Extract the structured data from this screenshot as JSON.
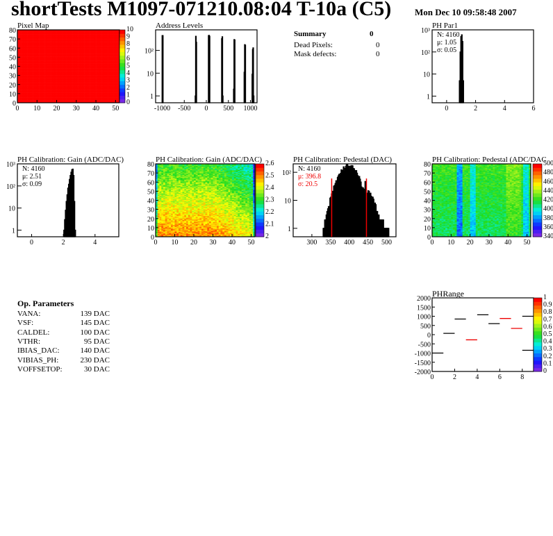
{
  "header": {
    "title": "shortTests M1097-071210.08:04 T-10a (C5)",
    "date": "Mon Dec 10 09:58:48 2007"
  },
  "summary": {
    "title": "Summary",
    "value": "0",
    "rows": [
      {
        "label": "Dead Pixels:",
        "value": "0"
      },
      {
        "label": "Mask defects:",
        "value": "0"
      }
    ]
  },
  "op_params": {
    "title": "Op. Parameters",
    "rows": [
      {
        "label": "VANA:",
        "value": "139 DAC"
      },
      {
        "label": "VSF:",
        "value": "145 DAC"
      },
      {
        "label": "CALDEL:",
        "value": "100 DAC"
      },
      {
        "label": "VTHR:",
        "value": "95 DAC"
      },
      {
        "label": "IBIAS_DAC:",
        "value": "140 DAC"
      },
      {
        "label": "VIBIAS_PH:",
        "value": "230 DAC"
      },
      {
        "label": "VOFFSETOP:",
        "value": "30 DAC"
      }
    ]
  },
  "chart_data": [
    {
      "id": "pixelmap",
      "type": "heatmap",
      "title": "Pixel Map",
      "xlim": [
        0,
        52
      ],
      "ylim": [
        0,
        80
      ],
      "zlim": [
        0,
        10
      ],
      "value_all": 10,
      "xticks": [
        0,
        10,
        20,
        30,
        40,
        50
      ],
      "yticks": [
        0,
        10,
        20,
        30,
        40,
        50,
        60,
        70,
        80
      ],
      "zticks": [
        0,
        1,
        2,
        3,
        4,
        5,
        6,
        7,
        8,
        9,
        10
      ]
    },
    {
      "id": "addr",
      "type": "bar",
      "title": "Address Levels",
      "xlim": [
        -1150,
        1150
      ],
      "ylim": [
        0.5,
        800
      ],
      "log_y": true,
      "xticks": [
        -1000,
        -500,
        0,
        500,
        1000
      ],
      "x": [
        -1000,
        -990,
        -250,
        -240,
        -230,
        50,
        60,
        70,
        350,
        360,
        370,
        380,
        620,
        630,
        640,
        650,
        860,
        870,
        880,
        1040,
        1050,
        1060,
        1070
      ],
      "values": [
        450,
        450,
        1,
        420,
        230,
        450,
        460,
        420,
        330,
        400,
        1,
        0,
        2,
        300,
        290,
        0,
        11,
        180,
        170,
        9,
        110,
        130,
        1
      ]
    },
    {
      "id": "phpar1",
      "type": "bar",
      "title": "PH Par1",
      "xlim": [
        -1,
        6
      ],
      "ylim": [
        0.5,
        1000
      ],
      "log_y": true,
      "xticks": [
        0,
        2,
        4,
        6
      ],
      "x": [
        0.9,
        0.95,
        1.0,
        1.05,
        1.1,
        1.15
      ],
      "values": [
        5,
        100,
        500,
        600,
        300,
        5
      ],
      "stats": {
        "n": "N: 4160",
        "mean": "μ: 1.05",
        "sigma": "σ: 0.05"
      }
    },
    {
      "id": "gainhist",
      "type": "bar",
      "title": "PH Calibration: Gain (ADC/DAC)",
      "xlim": [
        -0.9,
        5.5
      ],
      "ylim": [
        0.5,
        1000
      ],
      "log_y": true,
      "xticks": [
        0,
        2,
        4
      ],
      "x": [
        2.05,
        2.1,
        2.15,
        2.2,
        2.25,
        2.3,
        2.35,
        2.4,
        2.45,
        2.5,
        2.55,
        2.6,
        2.65,
        2.7,
        2.75
      ],
      "values": [
        1,
        3,
        8,
        20,
        40,
        80,
        120,
        200,
        300,
        420,
        550,
        580,
        300,
        20,
        1
      ],
      "stats": {
        "n": "N: 4160",
        "mean": "μ: 2.51",
        "sigma": "σ: 0.09"
      }
    },
    {
      "id": "gainmap",
      "type": "heatmap",
      "title": "PH Calibration: Gain (ADC/DAC)",
      "xlim": [
        0,
        52
      ],
      "ylim": [
        0,
        80
      ],
      "zlim": [
        1.95,
        2.7
      ],
      "xticks": [
        0,
        10,
        20,
        30,
        40,
        50
      ],
      "yticks": [
        0,
        10,
        20,
        30,
        40,
        50,
        60,
        70,
        80
      ],
      "zticks": [
        "2",
        "2.1",
        "2.2",
        "2.3",
        "2.4",
        "2.5",
        "2.6"
      ]
    },
    {
      "id": "pedhist",
      "type": "bar",
      "title": "PH Calibration: Pedestal (DAC)",
      "xlim": [
        250,
        525
      ],
      "ylim": [
        0.5,
        200
      ],
      "log_y": true,
      "xticks": [
        300,
        350,
        400,
        450,
        500
      ],
      "gauss": {
        "mean": 396.8,
        "sigma": 20.5,
        "n": 4160
      },
      "fit_range": [
        353,
        446
      ],
      "stats": {
        "n": "N: 4160",
        "mean": "μ: 396.8",
        "sigma": "σ: 20.5"
      }
    },
    {
      "id": "pedmap",
      "type": "heatmap",
      "title": "PH Calibration: Pedestal (ADC/DAC",
      "xlim": [
        0,
        52
      ],
      "ylim": [
        0,
        80
      ],
      "zlim": [
        330,
        510
      ],
      "xticks": [
        0,
        10,
        20,
        30,
        40,
        50
      ],
      "yticks": [
        0,
        10,
        20,
        30,
        40,
        50,
        60,
        70,
        80
      ],
      "zticks": [
        "340",
        "360",
        "380",
        "400",
        "420",
        "440",
        "460",
        "480",
        "500"
      ]
    },
    {
      "id": "phrange",
      "type": "scatter",
      "title": "PHRange",
      "xlim": [
        0,
        9
      ],
      "ylim": [
        -2000,
        2000
      ],
      "zlim": [
        0,
        1
      ],
      "xticks": [
        0,
        2,
        4,
        6,
        8
      ],
      "yticks": [
        -2000,
        -1500,
        -1000,
        -500,
        0,
        500,
        1000,
        1500,
        2000
      ],
      "zticks": [
        "0",
        "0.1",
        "0.2",
        "0.3",
        "0.4",
        "0.5",
        "0.6",
        "0.7",
        "0.8",
        "0.9",
        "1"
      ],
      "x": [
        0,
        1,
        2,
        3,
        4,
        5,
        6,
        7,
        8,
        8
      ],
      "values": [
        -1000,
        70,
        850,
        -280,
        1080,
        600,
        880,
        340,
        1000,
        -850
      ],
      "colors": [
        "#000",
        "#000",
        "#000",
        "#e00",
        "#000",
        "#000",
        "#e00",
        "#e00",
        "#000",
        "#000"
      ]
    }
  ]
}
